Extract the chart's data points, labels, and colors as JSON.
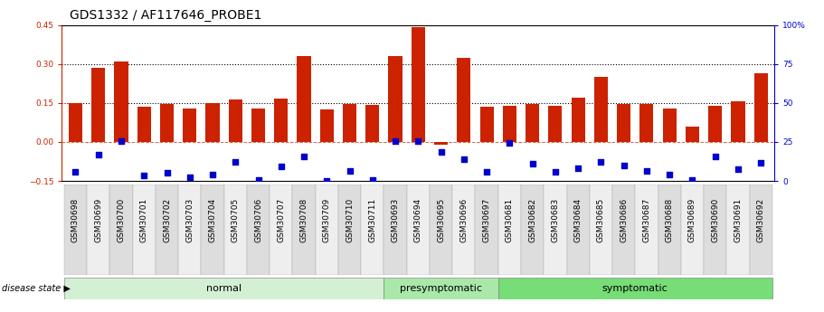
{
  "title": "GDS1332 / AF117646_PROBE1",
  "samples": [
    "GSM30698",
    "GSM30699",
    "GSM30700",
    "GSM30701",
    "GSM30702",
    "GSM30703",
    "GSM30704",
    "GSM30705",
    "GSM30706",
    "GSM30707",
    "GSM30708",
    "GSM30709",
    "GSM30710",
    "GSM30711",
    "GSM30693",
    "GSM30694",
    "GSM30695",
    "GSM30696",
    "GSM30697",
    "GSM30681",
    "GSM30682",
    "GSM30683",
    "GSM30684",
    "GSM30685",
    "GSM30686",
    "GSM30687",
    "GSM30688",
    "GSM30689",
    "GSM30690",
    "GSM30691",
    "GSM30692"
  ],
  "red_values": [
    0.148,
    0.285,
    0.31,
    0.137,
    0.145,
    0.128,
    0.15,
    0.165,
    0.128,
    0.168,
    0.33,
    0.125,
    0.145,
    0.143,
    0.33,
    0.44,
    -0.01,
    0.325,
    0.135,
    0.14,
    0.145,
    0.14,
    0.17,
    0.25,
    0.145,
    0.145,
    0.13,
    0.06,
    0.14,
    0.155,
    0.265
  ],
  "blue_values": [
    -0.115,
    -0.05,
    0.005,
    -0.13,
    -0.12,
    -0.135,
    -0.125,
    -0.075,
    -0.145,
    -0.095,
    -0.055,
    -0.15,
    -0.11,
    -0.145,
    0.005,
    0.002,
    -0.04,
    -0.065,
    -0.115,
    -0.005,
    -0.085,
    -0.115,
    -0.1,
    -0.075,
    -0.09,
    -0.11,
    -0.125,
    -0.145,
    -0.055,
    -0.105,
    -0.08
  ],
  "group_labels": [
    "normal",
    "presymptomatic",
    "symptomatic"
  ],
  "group_starts": [
    0,
    14,
    19
  ],
  "group_counts": [
    14,
    5,
    12
  ],
  "group_colors": [
    "#d4f0d4",
    "#aae8aa",
    "#77dd77"
  ],
  "bar_color": "#cc2200",
  "dot_color": "#0000cc",
  "ylim_left": [
    -0.15,
    0.45
  ],
  "ylim_right": [
    0,
    100
  ],
  "yticks_left": [
    -0.15,
    0.0,
    0.15,
    0.3,
    0.45
  ],
  "yticks_right": [
    0,
    25,
    50,
    75,
    100
  ],
  "hlines_dotted": [
    0.15,
    0.3
  ],
  "hline_dash": 0.0,
  "title_fontsize": 10,
  "tick_fontsize": 6.5,
  "group_fontsize": 8,
  "legend_fontsize": 8
}
